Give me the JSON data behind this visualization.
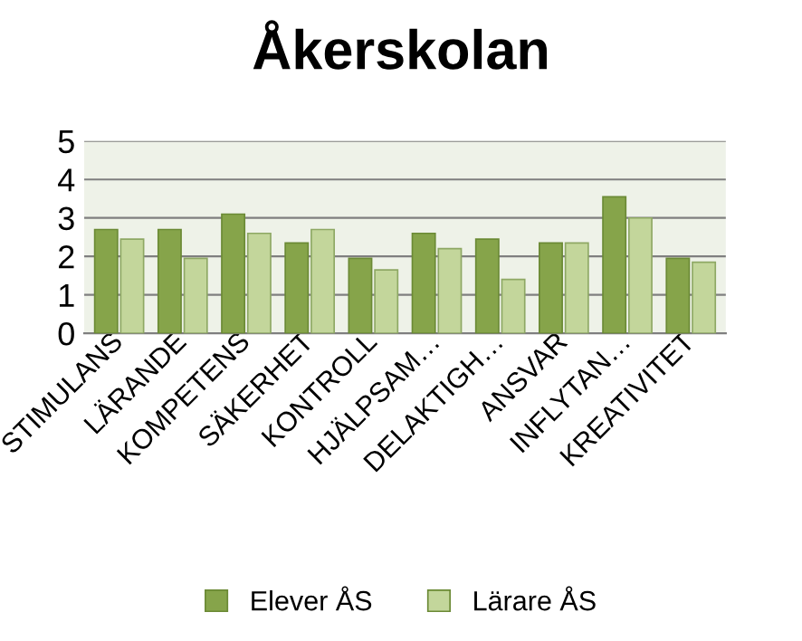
{
  "chart_data": {
    "type": "bar",
    "title": "Åkerskolan",
    "categories": [
      "STIMULANS",
      "LÄRANDE",
      "KOMPETENS",
      "SÄKERHET",
      "KONTROLL",
      "HJÄLPSAM…",
      "DELAKTIGH…",
      "ANSVAR",
      "INFLYTAN…",
      "KREATIVITET"
    ],
    "series": [
      {
        "name": "Elever ÅS",
        "color": "#86a44a",
        "values": [
          2.7,
          2.7,
          3.1,
          2.35,
          1.95,
          2.6,
          2.45,
          2.35,
          3.55,
          1.95
        ]
      },
      {
        "name": "Lärare ÅS",
        "color": "#c3d69b",
        "values": [
          2.45,
          1.95,
          2.6,
          2.7,
          1.65,
          2.2,
          1.4,
          2.35,
          3.0,
          1.85
        ]
      }
    ],
    "ylim": [
      0,
      5
    ],
    "yticks": [
      0,
      1,
      2,
      3,
      4,
      5
    ],
    "grid": "y",
    "legend": "bottom"
  }
}
